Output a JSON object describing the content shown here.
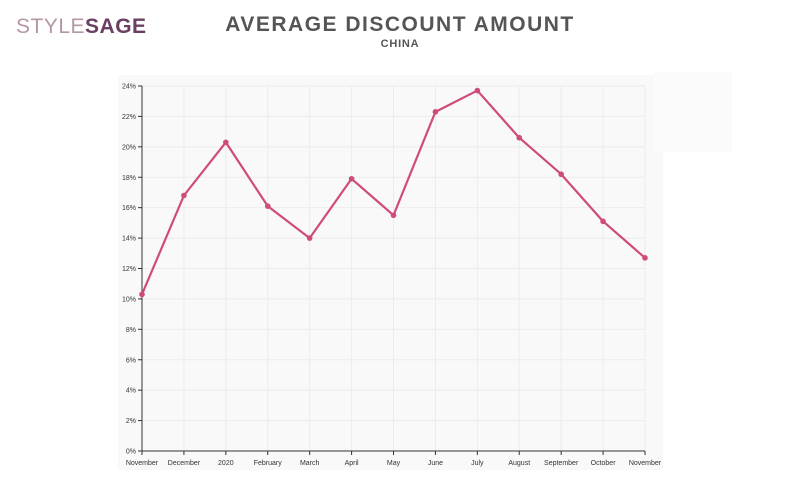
{
  "header": {
    "logo_part1": "STYLE",
    "logo_part2": "SAGE",
    "title": "AVERAGE DISCOUNT AMOUNT",
    "subtitle": "CHINA"
  },
  "colors": {
    "line": "#cf4b7c",
    "grid": "#ececec",
    "axis": "#333333"
  },
  "chart_data": {
    "type": "line",
    "title": "AVERAGE DISCOUNT AMOUNT",
    "subtitle": "CHINA",
    "xlabel": "",
    "ylabel": "",
    "categories": [
      "November",
      "December",
      "2020",
      "February",
      "March",
      "April",
      "May",
      "June",
      "July",
      "August",
      "September",
      "October",
      "November"
    ],
    "yticks": [
      "0%",
      "2%",
      "4%",
      "6%",
      "8%",
      "10%",
      "12%",
      "14%",
      "16%",
      "18%",
      "20%",
      "22%",
      "24%"
    ],
    "ylim": [
      0,
      24
    ],
    "grid": true,
    "series": [
      {
        "values": [
          10.3,
          16.8,
          20.3,
          16.1,
          14.0,
          17.9,
          15.5,
          22.3,
          23.7,
          20.6,
          18.2,
          15.1,
          12.7
        ]
      }
    ]
  }
}
